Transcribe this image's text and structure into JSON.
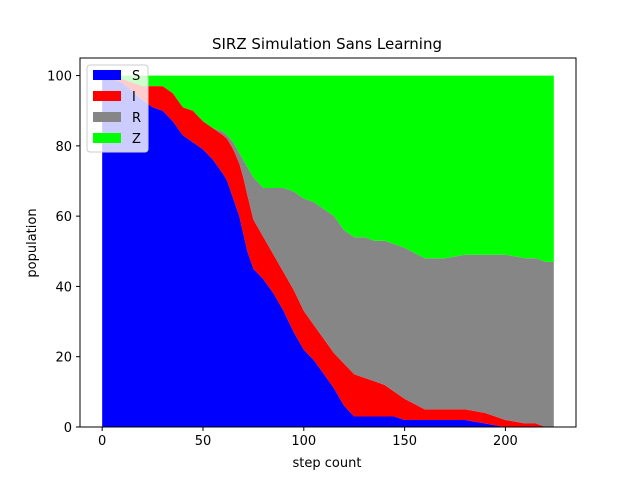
{
  "chart_data": {
    "type": "area",
    "title": "SIRZ Simulation Sans Learning",
    "xlabel": "step count",
    "ylabel": "population",
    "xlim": [
      -11,
      235
    ],
    "ylim": [
      0,
      105
    ],
    "xticks": [
      0,
      50,
      100,
      150,
      200
    ],
    "yticks": [
      0,
      20,
      40,
      60,
      80,
      100
    ],
    "legend_position": "top-left",
    "x": [
      0,
      10,
      20,
      25,
      30,
      35,
      40,
      45,
      50,
      55,
      60,
      62,
      65,
      68,
      70,
      72,
      75,
      80,
      85,
      90,
      95,
      100,
      105,
      110,
      115,
      120,
      125,
      130,
      135,
      140,
      145,
      150,
      160,
      170,
      180,
      190,
      200,
      210,
      215,
      220,
      224
    ],
    "series": [
      {
        "name": "S",
        "color": "#0000ff",
        "values": [
          100,
          98,
          93,
          91,
          90,
          87,
          83,
          81,
          79,
          76,
          72,
          70,
          65,
          60,
          55,
          50,
          45,
          42,
          38,
          33,
          27,
          22,
          19,
          15,
          11,
          6,
          3,
          3,
          3,
          3,
          3,
          2,
          2,
          2,
          2,
          1,
          0,
          0,
          0,
          0,
          0
        ]
      },
      {
        "name": "I",
        "color": "#ff0000",
        "values": [
          0,
          1,
          4,
          6,
          7,
          8,
          8,
          9,
          8,
          9,
          11,
          12,
          14,
          15,
          16,
          16,
          14,
          12,
          11,
          11,
          12,
          11,
          10,
          10,
          10,
          12,
          12,
          11,
          10,
          9,
          7,
          6,
          3,
          3,
          3,
          3,
          2,
          1,
          1,
          0,
          0
        ]
      },
      {
        "name": "R",
        "color": "#868686",
        "values": [
          0,
          0,
          0,
          0,
          0,
          0,
          0,
          0,
          0,
          0,
          1,
          1,
          2,
          3,
          5,
          8,
          12,
          14,
          19,
          24,
          28,
          32,
          35,
          37,
          39,
          38,
          39,
          40,
          40,
          41,
          42,
          43,
          43,
          43,
          44,
          45,
          47,
          47,
          47,
          47,
          47
        ]
      },
      {
        "name": "Z",
        "color": "#00ff00",
        "values": [
          0,
          1,
          3,
          3,
          3,
          5,
          9,
          10,
          13,
          15,
          16,
          17,
          19,
          22,
          24,
          26,
          29,
          32,
          32,
          32,
          33,
          35,
          36,
          38,
          40,
          44,
          46,
          46,
          47,
          47,
          48,
          49,
          52,
          52,
          51,
          51,
          51,
          52,
          52,
          53,
          53
        ]
      }
    ]
  }
}
